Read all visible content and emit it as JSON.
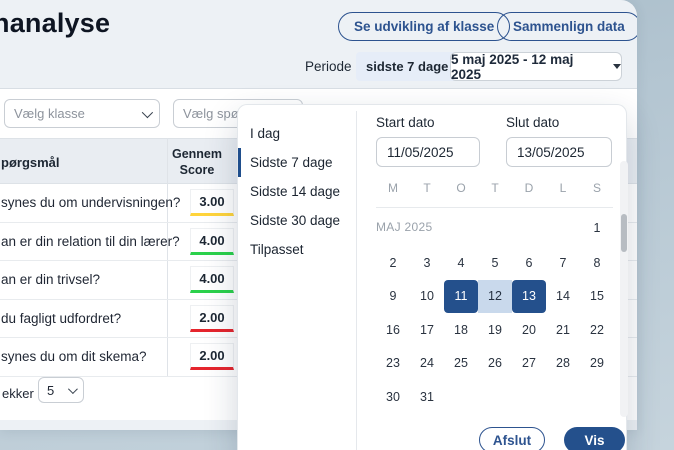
{
  "window": {
    "title_fragment": "nanalyse"
  },
  "actions": {
    "class_development": "Se udvikling af klasse",
    "compare_data": "Sammenlign data"
  },
  "period": {
    "label": "Periode",
    "quick_value": "sidste 7 dage",
    "range_value": "5 maj 2025 - 12 maj 2025"
  },
  "filters": {
    "class_placeholder": "Vælg klasse",
    "question_placeholder": "Vælg spørge"
  },
  "table": {
    "question_header": "pørgsmål",
    "score_header_line1": "Gennem",
    "score_header_line2": "Score",
    "rows": [
      {
        "question": "synes du om undervisningen?",
        "score": "3.00",
        "status_color": "#ffd43b"
      },
      {
        "question": "an er din relation til din lærer?",
        "score": "4.00",
        "status_color": "#2bd14b"
      },
      {
        "question": "an er din trivsel?",
        "score": "4.00",
        "status_color": "#2bd14b"
      },
      {
        "question": "du fagligt udfordret?",
        "score": "2.00",
        "status_color": "#e5252d"
      },
      {
        "question": "synes du om dit skema?",
        "score": "2.00",
        "status_color": "#e5252d"
      }
    ],
    "rows_per_page_label": "ekker",
    "rows_per_page_value": "5"
  },
  "datepicker": {
    "presets": [
      {
        "label": "I dag",
        "active": false
      },
      {
        "label": "Sidste 7 dage",
        "active": true
      },
      {
        "label": "Sidste 14 dage",
        "active": false
      },
      {
        "label": "Sidste 30 dage",
        "active": false
      },
      {
        "label": "Tilpasset",
        "active": false
      }
    ],
    "start_label": "Start dato",
    "start_value": "11/05/2025",
    "end_label": "Slut dato",
    "end_value": "13/05/2025",
    "weekdays": [
      "M",
      "T",
      "O",
      "T",
      "D",
      "L",
      "S"
    ],
    "month_label": "MAJ 2025",
    "first_row_day": "1",
    "weeks": [
      [
        2,
        3,
        4,
        5,
        6,
        7,
        8
      ],
      [
        9,
        10,
        11,
        12,
        13,
        14,
        15
      ],
      [
        16,
        17,
        18,
        19,
        20,
        21,
        22
      ],
      [
        23,
        24,
        25,
        26,
        27,
        28,
        29
      ],
      [
        30,
        31,
        null,
        null,
        null,
        null,
        null
      ]
    ],
    "selected_days": [
      11,
      13
    ],
    "range_days": [
      12
    ],
    "colors": {
      "selected_bg": "#24508c",
      "range_bg": "#c9d9ec"
    },
    "cancel_label": "Afslut",
    "apply_label": "Vis"
  }
}
